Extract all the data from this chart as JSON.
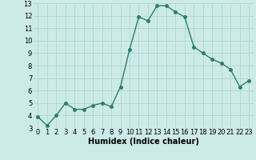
{
  "x": [
    0,
    1,
    2,
    3,
    4,
    5,
    6,
    7,
    8,
    9,
    10,
    11,
    12,
    13,
    14,
    15,
    16,
    17,
    18,
    19,
    20,
    21,
    22,
    23
  ],
  "y": [
    3.9,
    3.2,
    4.0,
    5.0,
    4.5,
    4.5,
    4.8,
    5.0,
    4.7,
    6.3,
    9.3,
    11.9,
    11.6,
    12.8,
    12.8,
    12.3,
    11.9,
    9.5,
    9.0,
    8.5,
    8.2,
    7.7,
    6.3,
    6.8
  ],
  "line_color": "#2e7d6e",
  "marker_color": "#2e7d6e",
  "bg_color": "#cceae7",
  "grid_color": "#aed4d0",
  "xlabel": "Humidex (Indice chaleur)",
  "ylim": [
    3,
    13
  ],
  "xlim_min": -0.5,
  "xlim_max": 23.5,
  "yticks": [
    3,
    4,
    5,
    6,
    7,
    8,
    9,
    10,
    11,
    12,
    13
  ],
  "xticks": [
    0,
    1,
    2,
    3,
    4,
    5,
    6,
    7,
    8,
    9,
    10,
    11,
    12,
    13,
    14,
    15,
    16,
    17,
    18,
    19,
    20,
    21,
    22,
    23
  ],
  "xtick_labels": [
    "0",
    "1",
    "2",
    "3",
    "4",
    "5",
    "6",
    "7",
    "8",
    "9",
    "10",
    "11",
    "12",
    "13",
    "14",
    "15",
    "16",
    "17",
    "18",
    "19",
    "20",
    "21",
    "22",
    "23"
  ],
  "ytick_labels": [
    "3",
    "4",
    "5",
    "6",
    "7",
    "8",
    "9",
    "10",
    "11",
    "12",
    "13"
  ],
  "xlabel_fontsize": 7,
  "tick_fontsize": 6,
  "linewidth": 1.0,
  "markersize": 2.5
}
